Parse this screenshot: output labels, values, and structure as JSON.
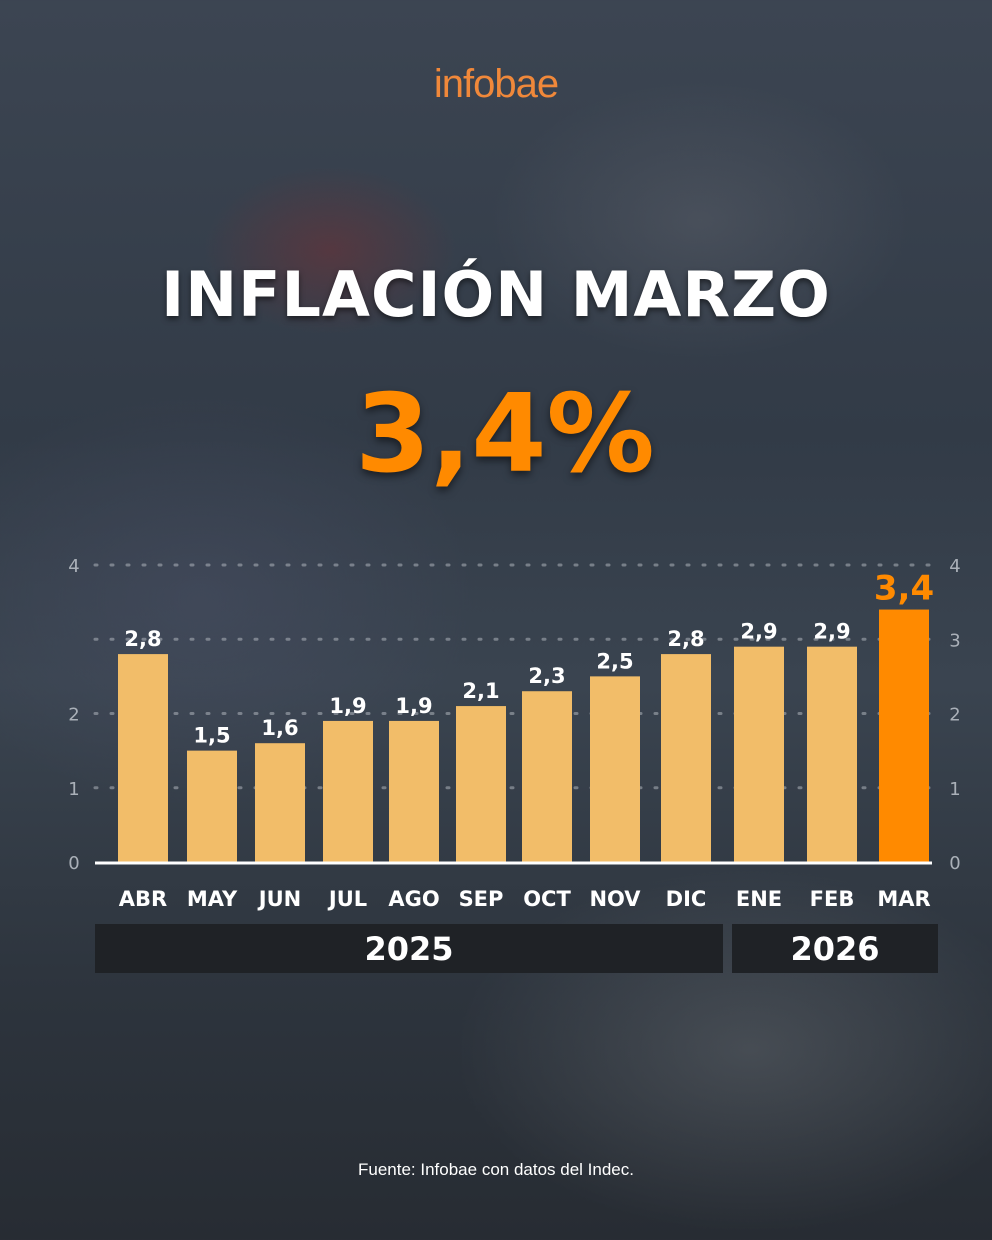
{
  "brand": "infobae",
  "title": "INFLACIÓN MARZO",
  "headline_value": "3,4%",
  "source": "Fuente: Infobae con datos del Indec.",
  "colors": {
    "bar": "#f2bd69",
    "highlight": "#ff8a00",
    "logo": "#f0883a",
    "year_band": "#1f2226"
  },
  "chart_data": {
    "type": "bar",
    "categories": [
      "ABR",
      "MAY",
      "JUN",
      "JUL",
      "AGO",
      "SEP",
      "OCT",
      "NOV",
      "DIC",
      "ENE",
      "FEB",
      "MAR"
    ],
    "values": [
      2.8,
      1.5,
      1.6,
      1.9,
      1.9,
      2.1,
      2.3,
      2.5,
      2.8,
      2.9,
      2.9,
      3.4
    ],
    "labels": [
      "2,8",
      "1,5",
      "1,6",
      "1,9",
      "1,9",
      "2,1",
      "2,3",
      "2,5",
      "2,8",
      "2,9",
      "2,9",
      "3,4"
    ],
    "highlight_index": 11,
    "ylim": [
      0,
      4
    ],
    "left_ticks": [
      0,
      1,
      2,
      4
    ],
    "right_ticks": [
      0,
      1,
      2,
      3,
      4
    ],
    "grid": true,
    "year_groups": [
      {
        "label": "2025",
        "from": 0,
        "to": 8
      },
      {
        "label": "2026",
        "from": 9,
        "to": 11
      }
    ]
  }
}
